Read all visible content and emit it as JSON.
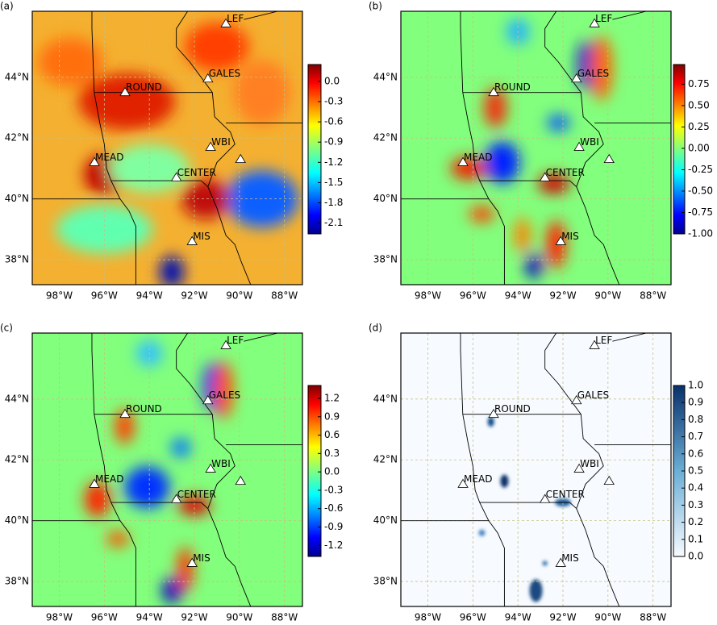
{
  "lonlim": [
    -99.2,
    -87.2
  ],
  "latlim": [
    37.18,
    46.17
  ],
  "lon_ticks": [
    {
      "value": -98,
      "label": "98°W"
    },
    {
      "value": -96,
      "label": "96°W"
    },
    {
      "value": -94,
      "label": "94°W"
    },
    {
      "value": -92,
      "label": "92°W"
    },
    {
      "value": -90,
      "label": "90°W"
    },
    {
      "value": -88,
      "label": "88°W"
    }
  ],
  "lat_ticks": [
    {
      "value": 44,
      "label": "44°N"
    },
    {
      "value": 42,
      "label": "42°N"
    },
    {
      "value": 40,
      "label": "40°N"
    },
    {
      "value": 38,
      "label": "38°N"
    }
  ],
  "stations": [
    {
      "name": "LEF",
      "lon": -90.6,
      "lat": 45.76
    },
    {
      "name": "GALES",
      "lon": -91.4,
      "lat": 43.95
    },
    {
      "name": "ROUND",
      "lon": -95.08,
      "lat": 43.5
    },
    {
      "name": "MEAD",
      "lon": -96.44,
      "lat": 41.2
    },
    {
      "name": "WBI",
      "lon": -91.28,
      "lat": 41.7
    },
    {
      "name": "CENTER",
      "lon": -92.8,
      "lat": 40.7
    },
    {
      "name": "MIS",
      "lon": -92.1,
      "lat": 38.6
    }
  ],
  "unlabeled_sites": [
    {
      "lon": -89.95,
      "lat": 41.3
    }
  ],
  "panels": [
    {
      "label": "(a)",
      "colormap": "jet",
      "clim": [
        -2.26,
        0.25
      ],
      "cticks": [
        {
          "value": 0,
          "label": "0.0"
        },
        -0.3,
        -0.6,
        -0.9,
        -1.2,
        -1.5,
        -1.8,
        -2.1
      ]
    },
    {
      "label": "(b)",
      "colormap": "jet",
      "clim": [
        -1,
        0.98
      ],
      "cticks": [
        0.75,
        {
          "value": 0.5,
          "label": "0.50"
        },
        0.25,
        {
          "value": 0,
          "label": "0.00"
        },
        -0.25,
        {
          "value": -0.5,
          "label": "-0.50"
        },
        -0.75,
        {
          "value": -1,
          "label": "-1.00"
        }
      ]
    },
    {
      "label": "(c)",
      "colormap": "jet",
      "clim": [
        -1.38,
        1.41
      ],
      "cticks": [
        1.2,
        0.9,
        0.6,
        0.3,
        {
          "value": 0,
          "label": "0.0"
        },
        -0.3,
        -0.6,
        -0.9,
        -1.2
      ]
    },
    {
      "label": "(d)",
      "colormap": "blues",
      "clim": [
        0,
        1
      ],
      "cticks": [
        {
          "value": 1,
          "label": "1.0"
        },
        0.9,
        0.8,
        0.7,
        0.6,
        0.5,
        0.4,
        0.3,
        0.2,
        0.1,
        {
          "value": 0,
          "label": "0.0"
        }
      ]
    }
  ]
}
